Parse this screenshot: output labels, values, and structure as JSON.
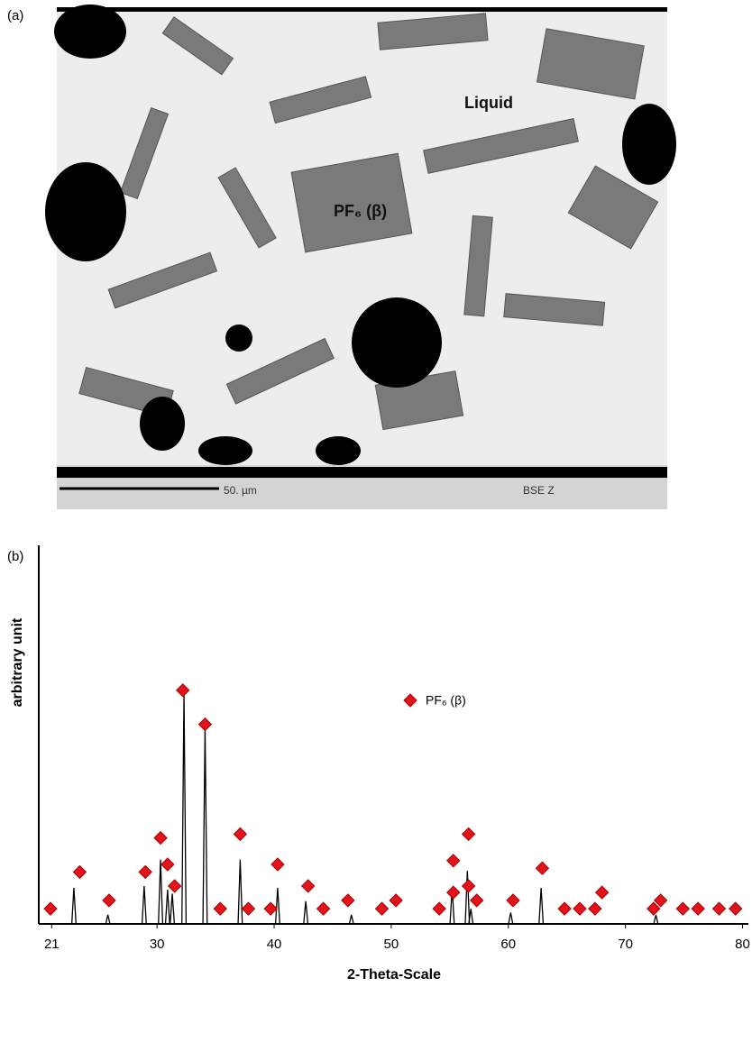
{
  "panel_a": {
    "label": "(a)",
    "annotations": [
      "Liquid",
      "PF₆ (β)"
    ],
    "scale_bar": "50. µm",
    "detector": "BSE Z"
  },
  "chart_data": {
    "type": "xrd",
    "panel_label": "(b)",
    "xlabel": "2-Theta-Scale",
    "ylabel": "arbitrary unit",
    "xlim": [
      19.9,
      80.5
    ],
    "xticks": [
      21,
      30,
      40,
      50,
      60,
      70,
      80
    ],
    "ylim": [
      0,
      100
    ],
    "peaks": {
      "color": "#000000",
      "x": [
        22.9,
        25.8,
        28.9,
        30.3,
        30.9,
        31.3,
        32.3,
        34.1,
        37.1,
        40.3,
        42.7,
        46.6,
        55.2,
        56.5,
        56.8,
        60.2,
        62.8,
        72.6
      ],
      "values": [
        9.5,
        2.4,
        10,
        17,
        9,
        8,
        61,
        52,
        17,
        9.5,
        6,
        2.4,
        9.5,
        14,
        4,
        3,
        9.5,
        2.4
      ]
    },
    "markers": {
      "name": "PF₆ (β)",
      "color": "#e3131b",
      "x": [
        20.9,
        23.4,
        25.9,
        29.0,
        30.3,
        30.9,
        31.5,
        32.2,
        34.1,
        35.4,
        37.1,
        37.8,
        39.7,
        40.3,
        42.9,
        44.2,
        46.3,
        49.2,
        50.4,
        54.1,
        55.3,
        55.3,
        56.6,
        56.6,
        57.3,
        60.4,
        62.9,
        64.8,
        66.1,
        67.4,
        68.0,
        72.4,
        73.0,
        74.9,
        76.2,
        78.0,
        79.4
      ],
      "values": [
        3.3,
        13,
        5.5,
        13,
        22,
        15,
        9.3,
        61,
        52,
        3.3,
        23,
        3.3,
        3.3,
        15,
        9.3,
        3.3,
        5.5,
        3.3,
        5.5,
        3.3,
        16,
        7.6,
        23,
        9.3,
        5.5,
        5.5,
        14,
        3.3,
        3.3,
        3.3,
        7.6,
        3.3,
        5.5,
        3.3,
        3.3,
        3.3,
        3.3
      ]
    },
    "legend": "top"
  }
}
